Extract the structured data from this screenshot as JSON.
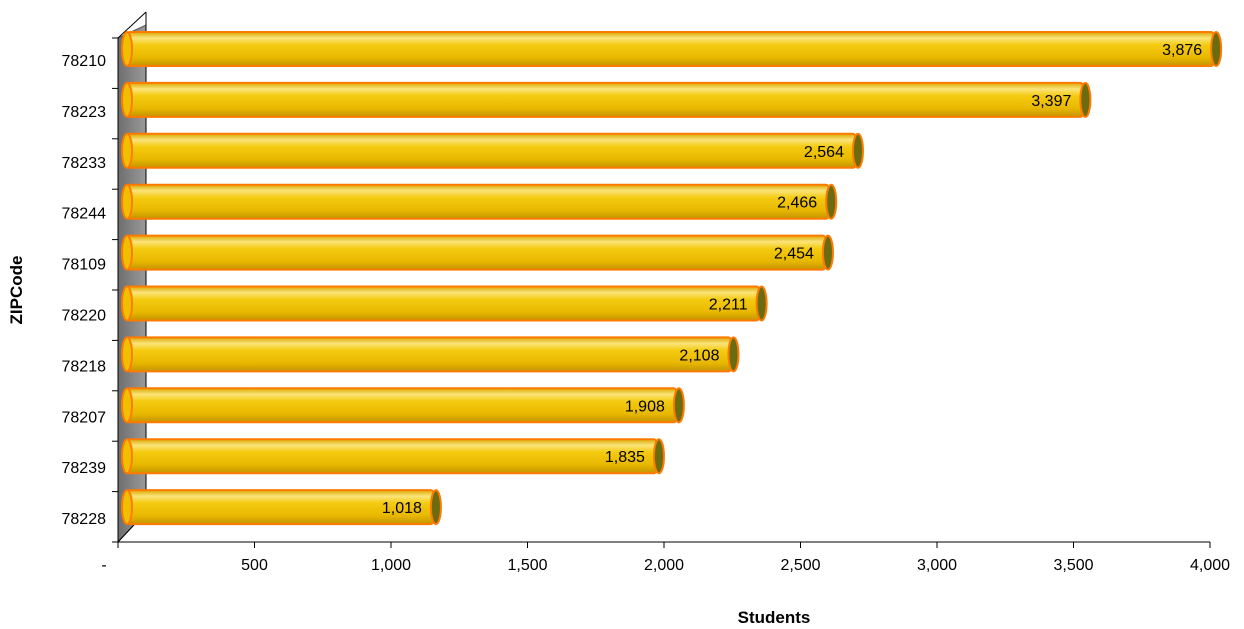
{
  "chart_data": {
    "type": "bar",
    "orientation": "horizontal",
    "categories": [
      "78210",
      "78223",
      "78233",
      "78244",
      "78109",
      "78220",
      "78218",
      "78207",
      "78239",
      "78228"
    ],
    "values": [
      3876,
      3397,
      2564,
      2466,
      2454,
      2211,
      2108,
      1908,
      1835,
      1018
    ],
    "value_labels": [
      "3,876",
      "3,397",
      "2,564",
      "2,466",
      "2,454",
      "2,211",
      "2,108",
      "1,908",
      "1,835",
      "1,018"
    ],
    "xlabel": "Students",
    "ylabel": "ZIPCode",
    "xlim": [
      0,
      4000
    ],
    "x_ticks": [
      0,
      500,
      1000,
      1500,
      2000,
      2500,
      3000,
      3500,
      4000
    ],
    "x_tick_labels": [
      "-",
      "500",
      "1,000",
      "1,500",
      "2,000",
      "2,500",
      "3,000",
      "3,500",
      "4,000"
    ],
    "grid": false,
    "legend": "none",
    "colors": {
      "bar_fill": "#f2c200",
      "bar_highlight": "#fff2a0",
      "bar_shadow": "#c99a00",
      "bar_outline": "#ff7a00",
      "bar_end_cap": "#6b6b10",
      "back_wall": "#8c8c8c"
    }
  }
}
